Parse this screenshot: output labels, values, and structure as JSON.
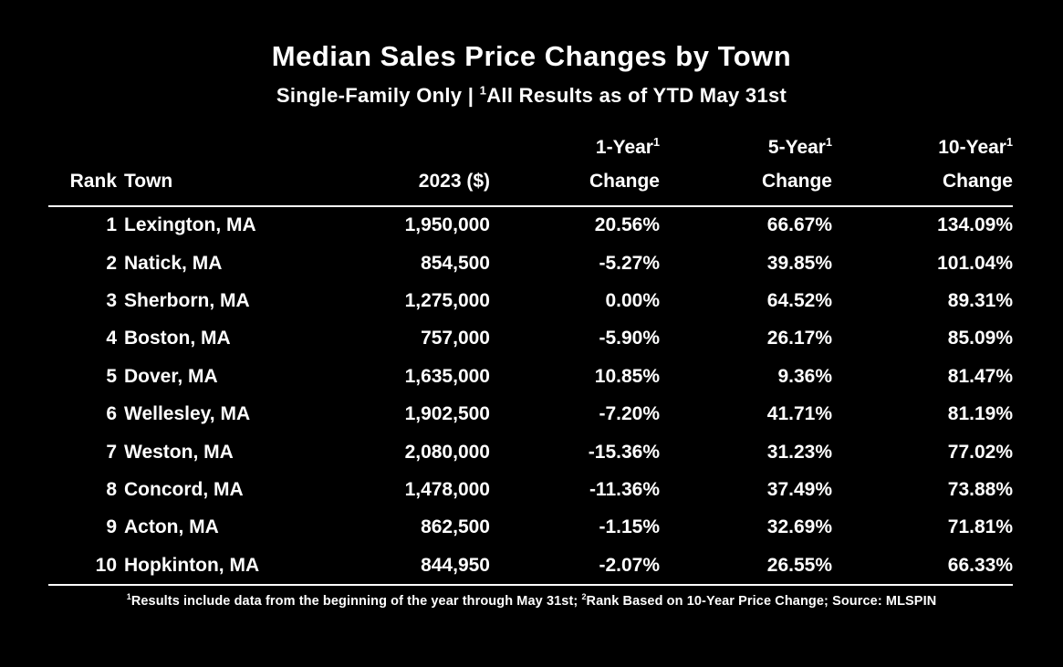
{
  "page": {
    "background": "#000000",
    "text_color": "#ffffff"
  },
  "header": {
    "title": "Median Sales Price Changes by Town",
    "subtitle_prefix": "Single-Family Only | ",
    "subtitle_sup": "1",
    "subtitle_rest": "All Results as of YTD May 31st"
  },
  "table": {
    "columns": {
      "rank": "Rank",
      "town": "Town",
      "price": "2023 ($)",
      "y1_label": "1-Year",
      "y1_sup": "1",
      "y5_label": "5-Year",
      "y5_sup": "1",
      "y10_label": "10-Year",
      "y10_sup": "1",
      "change": "Change"
    },
    "rows": [
      {
        "rank": "1",
        "town": "Lexington, MA",
        "price": "1,950,000",
        "y1": "20.56%",
        "y5": "66.67%",
        "y10": "134.09%"
      },
      {
        "rank": "2",
        "town": "Natick, MA",
        "price": "854,500",
        "y1": "-5.27%",
        "y5": "39.85%",
        "y10": "101.04%"
      },
      {
        "rank": "3",
        "town": "Sherborn, MA",
        "price": "1,275,000",
        "y1": "0.00%",
        "y5": "64.52%",
        "y10": "89.31%"
      },
      {
        "rank": "4",
        "town": "Boston, MA",
        "price": "757,000",
        "y1": "-5.90%",
        "y5": "26.17%",
        "y10": "85.09%"
      },
      {
        "rank": "5",
        "town": "Dover, MA",
        "price": "1,635,000",
        "y1": "10.85%",
        "y5": "9.36%",
        "y10": "81.47%"
      },
      {
        "rank": "6",
        "town": "Wellesley, MA",
        "price": "1,902,500",
        "y1": "-7.20%",
        "y5": "41.71%",
        "y10": "81.19%"
      },
      {
        "rank": "7",
        "town": "Weston, MA",
        "price": "2,080,000",
        "y1": "-15.36%",
        "y5": "31.23%",
        "y10": "77.02%"
      },
      {
        "rank": "8",
        "town": "Concord, MA",
        "price": "1,478,000",
        "y1": "-11.36%",
        "y5": "37.49%",
        "y10": "73.88%"
      },
      {
        "rank": "9",
        "town": "Acton, MA",
        "price": "862,500",
        "y1": "-1.15%",
        "y5": "32.69%",
        "y10": "71.81%"
      },
      {
        "rank": "10",
        "town": "Hopkinton, MA",
        "price": "844,950",
        "y1": "-2.07%",
        "y5": "26.55%",
        "y10": "66.33%"
      }
    ]
  },
  "footnote": {
    "sup1": "1",
    "text1": "Results include data from the beginning of the year through May 31st; ",
    "sup2": "2",
    "text2": "Rank Based on 10-Year Price Change; Source: MLSPIN"
  },
  "chart_data": {
    "type": "table",
    "title": "Median Sales Price Changes by Town",
    "subtitle": "Single-Family Only | All Results as of YTD May 31st",
    "columns": [
      "Rank",
      "Town",
      "2023 ($)",
      "1-Year Change",
      "5-Year Change",
      "10-Year Change"
    ],
    "rows": [
      [
        1,
        "Lexington, MA",
        1950000,
        20.56,
        66.67,
        134.09
      ],
      [
        2,
        "Natick, MA",
        854500,
        -5.27,
        39.85,
        101.04
      ],
      [
        3,
        "Sherborn, MA",
        1275000,
        0.0,
        64.52,
        89.31
      ],
      [
        4,
        "Boston, MA",
        757000,
        -5.9,
        26.17,
        85.09
      ],
      [
        5,
        "Dover, MA",
        1635000,
        10.85,
        9.36,
        81.47
      ],
      [
        6,
        "Wellesley, MA",
        1902500,
        -7.2,
        41.71,
        81.19
      ],
      [
        7,
        "Weston, MA",
        2080000,
        -15.36,
        31.23,
        77.02
      ],
      [
        8,
        "Concord, MA",
        1478000,
        -11.36,
        37.49,
        73.88
      ],
      [
        9,
        "Acton, MA",
        862500,
        -1.15,
        32.69,
        71.81
      ],
      [
        10,
        "Hopkinton, MA",
        844950,
        -2.07,
        26.55,
        66.33
      ]
    ],
    "footnote": "1 Results include data from the beginning of the year through May 31st; 2 Rank Based on 10-Year Price Change; Source: MLSPIN",
    "units": {
      "price": "USD",
      "changes": "percent"
    },
    "sort": "descending by 10-Year Change"
  }
}
